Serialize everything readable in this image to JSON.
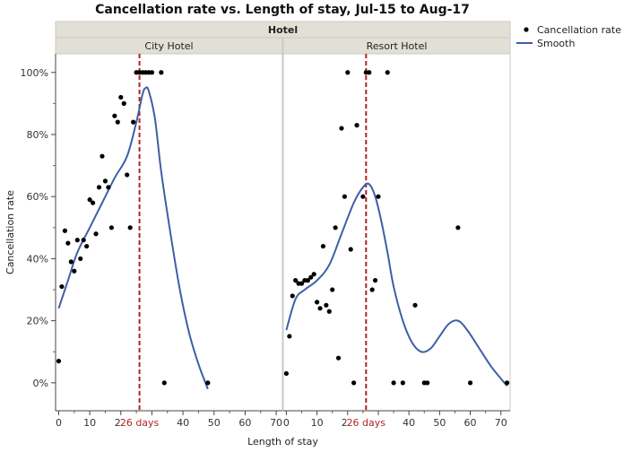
{
  "chart_data": {
    "type": "scatter",
    "title": "Cancellation rate vs. Length of stay, Jul-15 to Aug-17",
    "facet_title": "Hotel",
    "xlabel": "Length of stay",
    "ylabel": "Cancellation rate",
    "y_ticks": [
      "0%",
      "20%",
      "40%",
      "60%",
      "80%",
      "100%"
    ],
    "y_tick_values": [
      0,
      0.2,
      0.4,
      0.6,
      0.8,
      1.0
    ],
    "ylim": [
      -0.09,
      1.06
    ],
    "reference_line": {
      "x": 26,
      "label": "26 days",
      "color": "#b22222"
    },
    "legend": [
      {
        "label": "Cancellation rate",
        "marker": "dot"
      },
      {
        "label": "Smooth",
        "marker": "line"
      }
    ],
    "colors": {
      "points": "#000000",
      "smooth": "#3f5ea8",
      "reference": "#b22222",
      "header": "#e2e0d6"
    },
    "panels": [
      {
        "name": "City Hotel",
        "x_ticks": [
          0,
          10,
          20,
          30,
          40,
          50,
          60,
          70
        ],
        "x_tick_labels": [
          "0",
          "10",
          "20",
          "30",
          "40",
          "50",
          "60",
          "70"
        ],
        "xlim": [
          -1,
          72
        ],
        "points": [
          [
            0,
            0.07
          ],
          [
            1,
            0.31
          ],
          [
            2,
            0.49
          ],
          [
            3,
            0.45
          ],
          [
            4,
            0.39
          ],
          [
            5,
            0.36
          ],
          [
            6,
            0.46
          ],
          [
            7,
            0.4
          ],
          [
            8,
            0.46
          ],
          [
            9,
            0.44
          ],
          [
            10,
            0.59
          ],
          [
            11,
            0.58
          ],
          [
            12,
            0.48
          ],
          [
            13,
            0.63
          ],
          [
            14,
            0.73
          ],
          [
            15,
            0.65
          ],
          [
            16,
            0.63
          ],
          [
            17,
            0.5
          ],
          [
            18,
            0.86
          ],
          [
            19,
            0.84
          ],
          [
            20,
            0.92
          ],
          [
            21,
            0.9
          ],
          [
            22,
            0.67
          ],
          [
            23,
            0.5
          ],
          [
            24,
            0.84
          ],
          [
            25,
            1.0
          ],
          [
            26,
            1.0
          ],
          [
            27,
            1.0
          ],
          [
            28,
            1.0
          ],
          [
            29,
            1.0
          ],
          [
            30,
            1.0
          ],
          [
            33,
            1.0
          ],
          [
            34,
            0.0
          ],
          [
            48,
            0.0
          ]
        ],
        "smooth": [
          [
            0,
            0.24
          ],
          [
            3,
            0.33
          ],
          [
            6,
            0.42
          ],
          [
            10,
            0.5
          ],
          [
            14,
            0.58
          ],
          [
            18,
            0.66
          ],
          [
            22,
            0.73
          ],
          [
            25,
            0.84
          ],
          [
            27,
            0.93
          ],
          [
            28,
            0.95
          ],
          [
            29,
            0.94
          ],
          [
            31,
            0.85
          ],
          [
            33,
            0.68
          ],
          [
            36,
            0.48
          ],
          [
            39,
            0.3
          ],
          [
            42,
            0.16
          ],
          [
            45,
            0.06
          ],
          [
            48,
            -0.02
          ]
        ]
      },
      {
        "name": "Resort Hotel",
        "x_ticks": [
          0,
          10,
          20,
          30,
          40,
          50,
          60,
          70
        ],
        "x_tick_labels": [
          "0",
          "10",
          "20",
          "30",
          "40",
          "50",
          "60",
          "70"
        ],
        "xlim": [
          -1,
          73
        ],
        "points": [
          [
            0,
            0.03
          ],
          [
            1,
            0.15
          ],
          [
            2,
            0.28
          ],
          [
            3,
            0.33
          ],
          [
            4,
            0.32
          ],
          [
            5,
            0.32
          ],
          [
            6,
            0.33
          ],
          [
            7,
            0.33
          ],
          [
            8,
            0.34
          ],
          [
            9,
            0.35
          ],
          [
            10,
            0.26
          ],
          [
            11,
            0.24
          ],
          [
            12,
            0.44
          ],
          [
            13,
            0.25
          ],
          [
            14,
            0.23
          ],
          [
            15,
            0.3
          ],
          [
            16,
            0.5
          ],
          [
            17,
            0.08
          ],
          [
            18,
            0.82
          ],
          [
            19,
            0.6
          ],
          [
            20,
            1.0
          ],
          [
            21,
            0.43
          ],
          [
            22,
            0.0
          ],
          [
            23,
            0.83
          ],
          [
            25,
            0.6
          ],
          [
            26,
            1.0
          ],
          [
            27,
            1.0
          ],
          [
            28,
            0.3
          ],
          [
            29,
            0.33
          ],
          [
            30,
            0.6
          ],
          [
            33,
            1.0
          ],
          [
            35,
            0.0
          ],
          [
            38,
            0.0
          ],
          [
            42,
            0.25
          ],
          [
            45,
            0.0
          ],
          [
            46,
            0.0
          ],
          [
            56,
            0.5
          ],
          [
            60,
            0.0
          ],
          [
            72,
            0.0
          ]
        ],
        "smooth": [
          [
            0,
            0.17
          ],
          [
            3,
            0.27
          ],
          [
            6,
            0.3
          ],
          [
            10,
            0.33
          ],
          [
            14,
            0.38
          ],
          [
            18,
            0.48
          ],
          [
            22,
            0.58
          ],
          [
            25,
            0.63
          ],
          [
            27,
            0.64
          ],
          [
            29,
            0.6
          ],
          [
            31,
            0.52
          ],
          [
            33,
            0.42
          ],
          [
            35,
            0.31
          ],
          [
            38,
            0.2
          ],
          [
            41,
            0.13
          ],
          [
            44,
            0.1
          ],
          [
            47,
            0.11
          ],
          [
            50,
            0.15
          ],
          [
            53,
            0.19
          ],
          [
            56,
            0.2
          ],
          [
            59,
            0.17
          ],
          [
            63,
            0.11
          ],
          [
            67,
            0.05
          ],
          [
            72,
            -0.01
          ]
        ]
      }
    ]
  }
}
